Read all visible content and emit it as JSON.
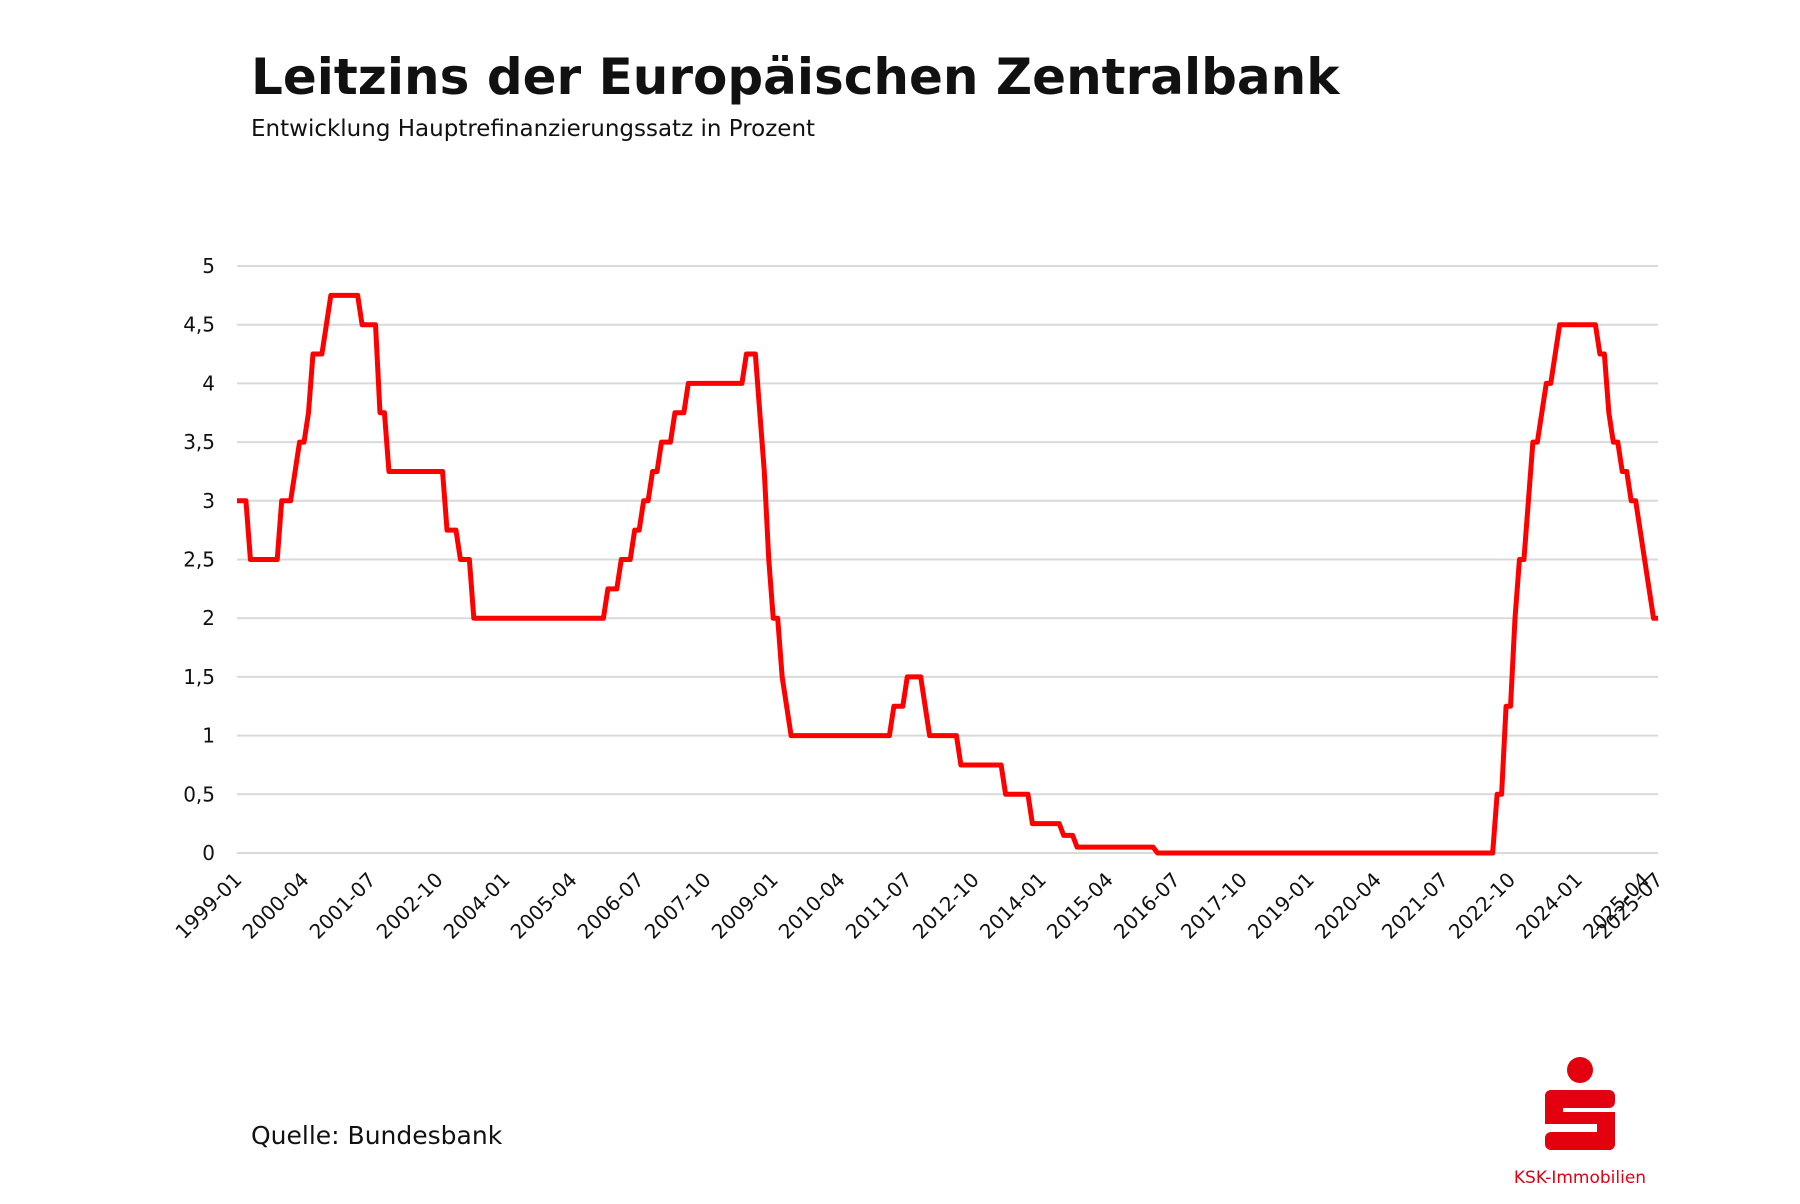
{
  "chart_data": {
    "type": "line",
    "title": "Leitzins der Europäischen Zentralbank",
    "subtitle": "Entwicklung Hauptrefinanzierungssatz in Prozent",
    "source": "Quelle: Bundesbank",
    "brand": "KSK-Immobilien",
    "color": "#ff0000",
    "grid": true,
    "x": [
      "1999-01",
      "1999-02",
      "1999-03",
      "1999-04",
      "1999-05",
      "1999-06",
      "1999-07",
      "1999-08",
      "1999-09",
      "1999-10",
      "1999-11",
      "1999-12",
      "2000-01",
      "2000-02",
      "2000-03",
      "2000-04",
      "2000-05",
      "2000-06",
      "2000-07",
      "2000-08",
      "2000-09",
      "2000-10",
      "2000-11",
      "2000-12",
      "2001-01",
      "2001-02",
      "2001-03",
      "2001-04",
      "2001-05",
      "2001-06",
      "2001-07",
      "2001-08",
      "2001-09",
      "2001-10",
      "2001-11",
      "2001-12",
      "2002-01",
      "2002-02",
      "2002-03",
      "2002-04",
      "2002-05",
      "2002-06",
      "2002-07",
      "2002-08",
      "2002-09",
      "2002-10",
      "2002-11",
      "2002-12",
      "2003-01",
      "2003-02",
      "2003-03",
      "2003-04",
      "2003-05",
      "2003-06",
      "2003-07",
      "2003-08",
      "2003-09",
      "2003-10",
      "2003-11",
      "2003-12",
      "2004-01",
      "2004-02",
      "2004-03",
      "2004-04",
      "2004-05",
      "2004-06",
      "2004-07",
      "2004-08",
      "2004-09",
      "2004-10",
      "2004-11",
      "2004-12",
      "2005-01",
      "2005-02",
      "2005-03",
      "2005-04",
      "2005-05",
      "2005-06",
      "2005-07",
      "2005-08",
      "2005-09",
      "2005-10",
      "2005-11",
      "2005-12",
      "2006-01",
      "2006-02",
      "2006-03",
      "2006-04",
      "2006-05",
      "2006-06",
      "2006-07",
      "2006-08",
      "2006-09",
      "2006-10",
      "2006-11",
      "2006-12",
      "2007-01",
      "2007-02",
      "2007-03",
      "2007-04",
      "2007-05",
      "2007-06",
      "2007-07",
      "2007-08",
      "2007-09",
      "2007-10",
      "2007-11",
      "2007-12",
      "2008-01",
      "2008-02",
      "2008-03",
      "2008-04",
      "2008-05",
      "2008-06",
      "2008-07",
      "2008-08",
      "2008-09",
      "2008-10",
      "2008-11",
      "2008-12",
      "2009-01",
      "2009-02",
      "2009-03",
      "2009-04",
      "2009-05",
      "2009-06",
      "2009-07",
      "2009-08",
      "2009-09",
      "2009-10",
      "2009-11",
      "2009-12",
      "2010-01",
      "2010-02",
      "2010-03",
      "2010-04",
      "2010-05",
      "2010-06",
      "2010-07",
      "2010-08",
      "2010-09",
      "2010-10",
      "2010-11",
      "2010-12",
      "2011-01",
      "2011-02",
      "2011-03",
      "2011-04",
      "2011-05",
      "2011-06",
      "2011-07",
      "2011-08",
      "2011-09",
      "2011-10",
      "2011-11",
      "2011-12",
      "2012-01",
      "2012-02",
      "2012-03",
      "2012-04",
      "2012-05",
      "2012-06",
      "2012-07",
      "2012-08",
      "2012-09",
      "2012-10",
      "2012-11",
      "2012-12",
      "2013-01",
      "2013-02",
      "2013-03",
      "2013-04",
      "2013-05",
      "2013-06",
      "2013-07",
      "2013-08",
      "2013-09",
      "2013-10",
      "2013-11",
      "2013-12",
      "2014-01",
      "2014-02",
      "2014-03",
      "2014-04",
      "2014-05",
      "2014-06",
      "2014-07",
      "2014-08",
      "2014-09",
      "2014-10",
      "2014-11",
      "2014-12",
      "2015-01",
      "2015-02",
      "2015-03",
      "2015-04",
      "2015-05",
      "2015-06",
      "2015-07",
      "2015-08",
      "2015-09",
      "2015-10",
      "2015-11",
      "2015-12",
      "2016-01",
      "2016-02",
      "2016-03",
      "2016-04",
      "2016-05",
      "2016-06",
      "2016-07",
      "2016-08",
      "2016-09",
      "2016-10",
      "2016-11",
      "2016-12",
      "2017-01",
      "2017-02",
      "2017-03",
      "2017-04",
      "2017-05",
      "2017-06",
      "2017-07",
      "2017-08",
      "2017-09",
      "2017-10",
      "2017-11",
      "2017-12",
      "2018-01",
      "2018-02",
      "2018-03",
      "2018-04",
      "2018-05",
      "2018-06",
      "2018-07",
      "2018-08",
      "2018-09",
      "2018-10",
      "2018-11",
      "2018-12",
      "2019-01",
      "2019-02",
      "2019-03",
      "2019-04",
      "2019-05",
      "2019-06",
      "2019-07",
      "2019-08",
      "2019-09",
      "2019-10",
      "2019-11",
      "2019-12",
      "2020-01",
      "2020-02",
      "2020-03",
      "2020-04",
      "2020-05",
      "2020-06",
      "2020-07",
      "2020-08",
      "2020-09",
      "2020-10",
      "2020-11",
      "2020-12",
      "2021-01",
      "2021-02",
      "2021-03",
      "2021-04",
      "2021-05",
      "2021-06",
      "2021-07",
      "2021-08",
      "2021-09",
      "2021-10",
      "2021-11",
      "2021-12",
      "2022-01",
      "2022-02",
      "2022-03",
      "2022-04",
      "2022-05",
      "2022-06",
      "2022-07",
      "2022-08",
      "2022-09",
      "2022-10",
      "2022-11",
      "2022-12",
      "2023-01",
      "2023-02",
      "2023-03",
      "2023-04",
      "2023-05",
      "2023-06",
      "2023-07",
      "2023-08",
      "2023-09",
      "2023-10",
      "2023-11",
      "2023-12",
      "2024-01",
      "2024-02",
      "2024-03",
      "2024-04",
      "2024-05",
      "2024-06",
      "2024-07",
      "2024-08",
      "2024-09",
      "2024-10",
      "2024-11",
      "2024-12",
      "2025-01",
      "2025-02",
      "2025-03",
      "2025-04",
      "2025-05",
      "2025-06",
      "2025-07"
    ],
    "values": [
      3,
      3,
      3,
      2.5,
      2.5,
      2.5,
      2.5,
      2.5,
      2.5,
      2.5,
      3,
      3,
      3,
      3.25,
      3.5,
      3.5,
      3.75,
      4.25,
      4.25,
      4.25,
      4.5,
      4.75,
      4.75,
      4.75,
      4.75,
      4.75,
      4.75,
      4.75,
      4.5,
      4.5,
      4.5,
      4.5,
      3.75,
      3.75,
      3.25,
      3.25,
      3.25,
      3.25,
      3.25,
      3.25,
      3.25,
      3.25,
      3.25,
      3.25,
      3.25,
      3.25,
      3.25,
      2.75,
      2.75,
      2.75,
      2.5,
      2.5,
      2.5,
      2,
      2,
      2,
      2,
      2,
      2,
      2,
      2,
      2,
      2,
      2,
      2,
      2,
      2,
      2,
      2,
      2,
      2,
      2,
      2,
      2,
      2,
      2,
      2,
      2,
      2,
      2,
      2,
      2,
      2,
      2.25,
      2.25,
      2.25,
      2.5,
      2.5,
      2.5,
      2.75,
      2.75,
      3,
      3,
      3.25,
      3.25,
      3.5,
      3.5,
      3.5,
      3.75,
      3.75,
      3.75,
      4,
      4,
      4,
      4,
      4,
      4,
      4,
      4,
      4,
      4,
      4,
      4,
      4,
      4.25,
      4.25,
      4.25,
      3.75,
      3.25,
      2.5,
      2,
      2,
      1.5,
      1.25,
      1,
      1,
      1,
      1,
      1,
      1,
      1,
      1,
      1,
      1,
      1,
      1,
      1,
      1,
      1,
      1,
      1,
      1,
      1,
      1,
      1,
      1,
      1,
      1.25,
      1.25,
      1.25,
      1.5,
      1.5,
      1.5,
      1.5,
      1.25,
      1,
      1,
      1,
      1,
      1,
      1,
      1,
      0.75,
      0.75,
      0.75,
      0.75,
      0.75,
      0.75,
      0.75,
      0.75,
      0.75,
      0.75,
      0.5,
      0.5,
      0.5,
      0.5,
      0.5,
      0.5,
      0.25,
      0.25,
      0.25,
      0.25,
      0.25,
      0.25,
      0.25,
      0.15,
      0.15,
      0.15,
      0.05,
      0.05,
      0.05,
      0.05,
      0.05,
      0.05,
      0.05,
      0.05,
      0.05,
      0.05,
      0.05,
      0.05,
      0.05,
      0.05,
      0.05,
      0.05,
      0.05,
      0.05,
      0,
      0,
      0,
      0,
      0,
      0,
      0,
      0,
      0,
      0,
      0,
      0,
      0,
      0,
      0,
      0,
      0,
      0,
      0,
      0,
      0,
      0,
      0,
      0,
      0,
      0,
      0,
      0,
      0,
      0,
      0,
      0,
      0,
      0,
      0,
      0,
      0,
      0,
      0,
      0,
      0,
      0,
      0,
      0,
      0,
      0,
      0,
      0,
      0,
      0,
      0,
      0,
      0,
      0,
      0,
      0,
      0,
      0,
      0,
      0,
      0,
      0,
      0,
      0,
      0,
      0,
      0,
      0,
      0,
      0,
      0,
      0,
      0,
      0,
      0,
      0,
      0.5,
      0.5,
      1.25,
      1.25,
      2,
      2.5,
      2.5,
      3,
      3.5,
      3.5,
      3.75,
      4,
      4,
      4.25,
      4.5,
      4.5,
      4.5,
      4.5,
      4.5,
      4.5,
      4.5,
      4.5,
      4.5,
      4.25,
      4.25,
      3.75,
      3.5,
      3.5,
      3.25,
      3.25,
      3,
      3,
      2.75,
      2.5,
      2.25,
      2,
      2
    ],
    "xlim": [
      "1999-01",
      "2025-07"
    ],
    "xticks": [
      "1999-01",
      "2000-04",
      "2001-07",
      "2002-10",
      "2004-01",
      "2005-04",
      "2006-07",
      "2007-10",
      "2009-01",
      "2010-04",
      "2011-07",
      "2012-10",
      "2014-01",
      "2015-04",
      "2016-07",
      "2017-10",
      "2019-01",
      "2020-04",
      "2021-07",
      "2022-10",
      "2024-01",
      "2025-04",
      "2025-07"
    ],
    "ylim": [
      0,
      5
    ],
    "yticks": [
      0,
      {
        "value": 0.5,
        "label": "0,5"
      },
      1,
      {
        "value": 1.5,
        "label": "1,5"
      },
      2,
      {
        "value": 2.5,
        "label": "2,5"
      },
      3,
      {
        "value": 3.5,
        "label": "3,5"
      },
      4,
      {
        "value": 4.5,
        "label": "4,5"
      },
      5
    ]
  }
}
